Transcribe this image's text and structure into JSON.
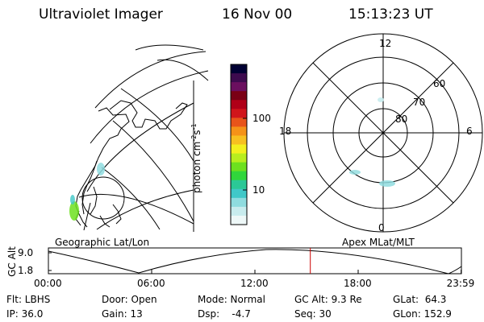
{
  "header": {
    "instrument": "Ultraviolet Imager",
    "date": "16 Nov 00",
    "time": "15:13:23 UT"
  },
  "colorbar": {
    "unit_main": "photon cm",
    "unit_exp1": "-2",
    "unit_mid": "s",
    "unit_exp2": "-1",
    "tick_100": "100",
    "tick_10": "10",
    "colors": [
      "#000033",
      "#3d0a4e",
      "#6b0f5f",
      "#7a0015",
      "#b00018",
      "#d0151b",
      "#e8541a",
      "#f59218",
      "#f7c020",
      "#f3f01e",
      "#b8ee1e",
      "#6de01e",
      "#30d63b",
      "#2bc896",
      "#40c8c8",
      "#8fdcdf",
      "#c8ecee",
      "#eef8f8"
    ]
  },
  "polar": {
    "label_top": "12",
    "label_right": "6",
    "label_bottom": "0",
    "label_left": "18",
    "lat_60": "60",
    "lat_70": "70",
    "lat_80": "80"
  },
  "panels": {
    "left_label": "Geographic Lat/Lon",
    "right_label": "Apex MLat/MLT"
  },
  "altitude_plot": {
    "ylabel": "GC Alt",
    "y_high": "9.0",
    "y_low": "1.8",
    "x_ticks": [
      "00:00",
      "06:00",
      "12:00",
      "18:00",
      "23:59"
    ],
    "marker_time_hours": 15.22,
    "marker_color": "#cc0000"
  },
  "info": {
    "flt": "Flt: LBHS",
    "ip": "IP: 36.0",
    "door": "Door: Open",
    "gain": "Gain: 13",
    "mode": "Mode: Normal",
    "dsp": "Dsp:    -4.7",
    "gcalt": "GC Alt: 9.3 Re",
    "seq": "Seq: 30",
    "glat": "GLat:  64.3",
    "glon": "GLon: 152.9"
  }
}
